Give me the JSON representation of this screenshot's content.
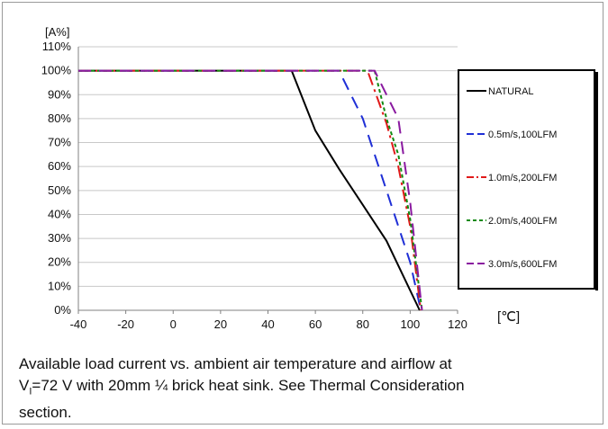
{
  "chart_data": {
    "type": "line",
    "ylabel": "[A%]",
    "xunit": "[℃]",
    "xlim": [
      -40,
      120
    ],
    "ylim": [
      0,
      110
    ],
    "xticks": [
      -40,
      -20,
      0,
      20,
      40,
      60,
      80,
      100,
      120
    ],
    "yticks": [
      0,
      10,
      20,
      30,
      40,
      50,
      60,
      70,
      80,
      90,
      100,
      110
    ],
    "ytick_suffix": "%",
    "grid": true,
    "legend_position": "right",
    "series": [
      {
        "name": "NATURAL",
        "color": "#000000",
        "dash": "solid",
        "points": [
          [
            -40,
            100
          ],
          [
            50,
            100
          ],
          [
            60,
            75
          ],
          [
            70,
            59
          ],
          [
            80,
            44
          ],
          [
            90,
            29
          ],
          [
            104,
            0
          ]
        ]
      },
      {
        "name": "0.5m/s,100LFM",
        "color": "#1f2fd6",
        "dash": "dash",
        "points": [
          [
            -40,
            100
          ],
          [
            70,
            100
          ],
          [
            80,
            80
          ],
          [
            90,
            50
          ],
          [
            100,
            20
          ],
          [
            104.5,
            0
          ]
        ]
      },
      {
        "name": "1.0m/s,200LFM",
        "color": "#e01919",
        "dash": "dashdot",
        "points": [
          [
            -40,
            100
          ],
          [
            82,
            100
          ],
          [
            90,
            78
          ],
          [
            95,
            60
          ],
          [
            100,
            35
          ],
          [
            104.5,
            0
          ]
        ]
      },
      {
        "name": "2.0m/s,400LFM",
        "color": "#118a11",
        "dash": "dotted",
        "points": [
          [
            -40,
            100
          ],
          [
            85,
            100
          ],
          [
            90,
            80
          ],
          [
            95,
            65
          ],
          [
            100,
            38
          ],
          [
            105,
            0
          ]
        ]
      },
      {
        "name": "3.0m/s,600LFM",
        "color": "#8a1aa0",
        "dash": "dash",
        "points": [
          [
            -40,
            100
          ],
          [
            85,
            100
          ],
          [
            95,
            80
          ],
          [
            100,
            45
          ],
          [
            105,
            0
          ]
        ]
      }
    ]
  },
  "caption": {
    "line1": "Available load current vs. ambient air temperature and airflow at",
    "v_prefix": "V",
    "v_sub": "I",
    "line2": "=72 V with 20mm ¼ brick heat sink. See Thermal Consideration",
    "line3": "section."
  }
}
